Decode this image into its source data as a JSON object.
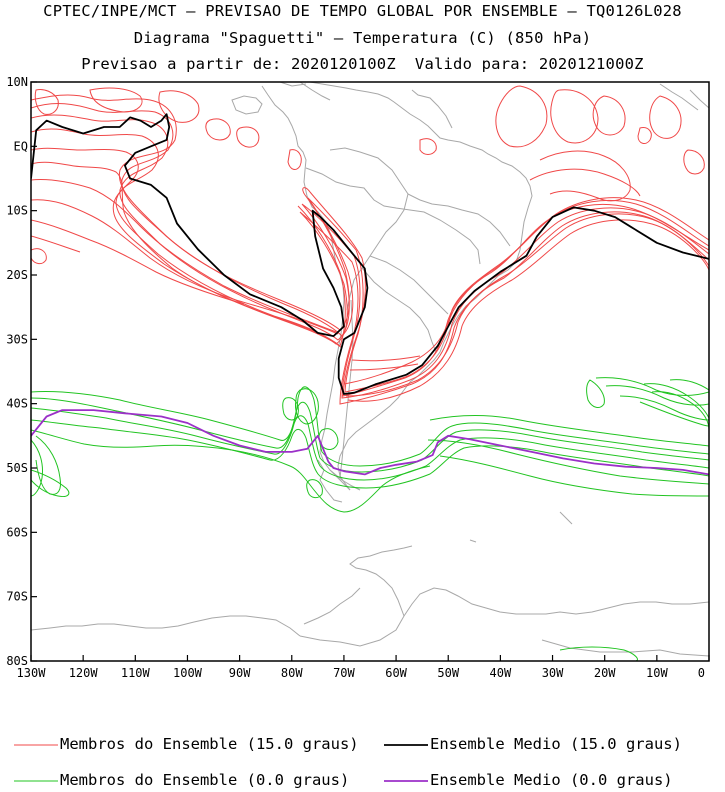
{
  "header": {
    "line1": "CPTEC/INPE/MCT – PREVISAO DE TEMPO GLOBAL POR ENSEMBLE – TQ0126L028",
    "line2": "Diagrama \"Spaguetti\" – Temperatura (C) (850 hPa)",
    "line3": "Previsao a partir de: 2020120100Z  Valido para: 2020121000Z"
  },
  "chart_data": {
    "type": "line",
    "title": "Diagrama \"Spaguetti\" – Temperatura (C) (850 hPa)",
    "xlabel": "",
    "ylabel": "",
    "xlim": [
      -130,
      0
    ],
    "ylim": [
      -80,
      10
    ],
    "x_ticks": [
      {
        "value": -130,
        "label": "130W"
      },
      {
        "value": -120,
        "label": "120W"
      },
      {
        "value": -110,
        "label": "110W"
      },
      {
        "value": -100,
        "label": "100W"
      },
      {
        "value": -90,
        "label": "90W"
      },
      {
        "value": -80,
        "label": "80W"
      },
      {
        "value": -70,
        "label": "70W"
      },
      {
        "value": -60,
        "label": "60W"
      },
      {
        "value": -50,
        "label": "50W"
      },
      {
        "value": -40,
        "label": "40W"
      },
      {
        "value": -30,
        "label": "30W"
      },
      {
        "value": -20,
        "label": "20W"
      },
      {
        "value": -10,
        "label": "10W"
      },
      {
        "value": 0,
        "label": "0"
      }
    ],
    "y_ticks": [
      {
        "value": 10,
        "label": "10N"
      },
      {
        "value": 0,
        "label": "EQ"
      },
      {
        "value": -10,
        "label": "10S"
      },
      {
        "value": -20,
        "label": "20S"
      },
      {
        "value": -30,
        "label": "30S"
      },
      {
        "value": -40,
        "label": "40S"
      },
      {
        "value": -50,
        "label": "50S"
      },
      {
        "value": -60,
        "label": "60S"
      },
      {
        "value": -70,
        "label": "70S"
      },
      {
        "value": -80,
        "label": "80S"
      }
    ],
    "series": [
      {
        "name": "Ensemble Medio (15.0 graus)",
        "color": "#000000",
        "points": [
          [
            -130,
            -5
          ],
          [
            -129,
            2.5
          ],
          [
            -127,
            4
          ],
          [
            -124,
            3
          ],
          [
            -120,
            2
          ],
          [
            -116,
            3
          ],
          [
            -113,
            3
          ],
          [
            -111,
            4.5
          ],
          [
            -109,
            4
          ],
          [
            -107,
            3
          ],
          [
            -105,
            4
          ],
          [
            -104,
            5
          ],
          [
            -103.5,
            3
          ],
          [
            -104,
            1
          ],
          [
            -107,
            0
          ],
          [
            -110,
            -1
          ],
          [
            -112,
            -3
          ],
          [
            -111,
            -5
          ],
          [
            -107,
            -6
          ],
          [
            -104,
            -8
          ],
          [
            -102,
            -12
          ],
          [
            -98,
            -16
          ],
          [
            -93,
            -20
          ],
          [
            -88,
            -23
          ],
          [
            -82,
            -25
          ],
          [
            -78,
            -27
          ],
          [
            -75,
            -29
          ],
          [
            -72,
            -29.5
          ],
          [
            -70,
            -28
          ],
          [
            -70.5,
            -25
          ],
          [
            -72,
            -22
          ],
          [
            -74,
            -19
          ],
          [
            -75.5,
            -14
          ],
          [
            -76,
            -10
          ],
          [
            -74.5,
            -11
          ],
          [
            -72,
            -13
          ],
          [
            -69,
            -16
          ],
          [
            -66,
            -19
          ],
          [
            -65.5,
            -22
          ],
          [
            -66,
            -25
          ],
          [
            -67,
            -27
          ],
          [
            -68,
            -29
          ],
          [
            -70,
            -30
          ],
          [
            -71,
            -33
          ],
          [
            -71,
            -36
          ],
          [
            -70,
            -38.5
          ],
          [
            -68,
            -38.3
          ],
          [
            -64,
            -37
          ],
          [
            -58,
            -35.5
          ],
          [
            -55,
            -34
          ],
          [
            -52,
            -31
          ],
          [
            -50,
            -28
          ],
          [
            -48,
            -25
          ],
          [
            -45,
            -22.5
          ],
          [
            -40,
            -19.5
          ],
          [
            -35,
            -17
          ],
          [
            -33,
            -14
          ],
          [
            -30,
            -11
          ],
          [
            -26,
            -9.5
          ],
          [
            -22,
            -10
          ],
          [
            -18,
            -11
          ],
          [
            -15,
            -12.5
          ],
          [
            -10,
            -15
          ],
          [
            -5,
            -16.5
          ],
          [
            0,
            -17.5
          ]
        ]
      },
      {
        "name": "Ensemble Medio (0.0 graus)",
        "color": "#9b30c8",
        "points": [
          [
            -130,
            -45
          ],
          [
            -127,
            -42
          ],
          [
            -124,
            -41
          ],
          [
            -118,
            -41
          ],
          [
            -112,
            -41.5
          ],
          [
            -105,
            -42
          ],
          [
            -100,
            -43
          ],
          [
            -95,
            -45
          ],
          [
            -90,
            -46.5
          ],
          [
            -85,
            -47.5
          ],
          [
            -80,
            -47.5
          ],
          [
            -77,
            -47
          ],
          [
            -75,
            -45
          ],
          [
            -74,
            -47
          ],
          [
            -73,
            -49
          ],
          [
            -72,
            -50
          ],
          [
            -70,
            -50.5
          ],
          [
            -66,
            -51
          ],
          [
            -63,
            -50
          ],
          [
            -60,
            -49.5
          ],
          [
            -56,
            -49
          ],
          [
            -53,
            -48
          ],
          [
            -52,
            -46
          ],
          [
            -50,
            -45
          ],
          [
            -46,
            -45.5
          ],
          [
            -40,
            -46.5
          ],
          [
            -34,
            -47.5
          ],
          [
            -28,
            -48.5
          ],
          [
            -22,
            -49.3
          ],
          [
            -16,
            -49.8
          ],
          [
            -10,
            -50
          ],
          [
            -5,
            -50.3
          ],
          [
            0,
            -51
          ]
        ]
      }
    ],
    "legend": [
      {
        "label": "Membros do Ensemble (15.0 graus)",
        "color": "#f04040"
      },
      {
        "label": "Ensemble Medio (15.0 graus)",
        "color": "#000000"
      },
      {
        "label": "Membros do Ensemble (0.0 graus)",
        "color": "#20c020"
      },
      {
        "label": "Ensemble Medio (0.0 graus)",
        "color": "#9b30c8"
      }
    ],
    "legend_position": "bottom"
  }
}
